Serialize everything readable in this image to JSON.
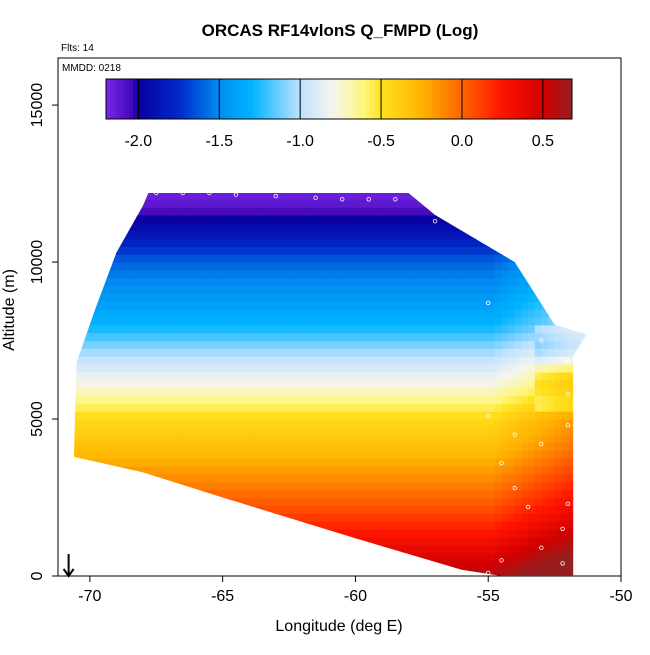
{
  "chart_data": {
    "type": "heatmap",
    "title": "ORCAS RF14vlonS Q_FMPD (Log)",
    "xlabel": "Longitude (deg E)",
    "ylabel": "Altitude (m)",
    "xlim": [
      -71.2,
      -50
    ],
    "ylim": [
      0,
      16500
    ],
    "xticks": [
      -70,
      -65,
      -60,
      -55,
      -50
    ],
    "yticks": [
      0,
      5000,
      10000,
      15000
    ],
    "colorbar": {
      "range": [
        -2.2,
        0.68
      ],
      "ticks": [
        -2.0,
        -1.5,
        -1.0,
        -0.5,
        0.0,
        0.5
      ],
      "tick_labels": [
        "-2.0",
        "-1.5",
        "-1.0",
        "-0.5",
        "0.0",
        "0.5"
      ]
    },
    "annotations": {
      "flights": "Flts: 14",
      "date": "MMDD: 0218"
    },
    "profile": [
      {
        "altitude": 0,
        "value": 0.6
      },
      {
        "altitude": 1000,
        "value": 0.35
      },
      {
        "altitude": 2000,
        "value": 0.1
      },
      {
        "altitude": 3000,
        "value": -0.1
      },
      {
        "altitude": 4000,
        "value": -0.3
      },
      {
        "altitude": 5000,
        "value": -0.45
      },
      {
        "altitude": 6000,
        "value": -0.75
      },
      {
        "altitude": 7000,
        "value": -1.0
      },
      {
        "altitude": 8000,
        "value": -1.3
      },
      {
        "altitude": 9000,
        "value": -1.45
      },
      {
        "altitude": 10000,
        "value": -1.6
      },
      {
        "altitude": 11000,
        "value": -1.9
      },
      {
        "altitude": 12000,
        "value": -2.15
      }
    ],
    "domain_outline": [
      {
        "lon": -70.6,
        "alt": 3800
      },
      {
        "lon": -70.5,
        "alt": 6800
      },
      {
        "lon": -69.8,
        "alt": 8500
      },
      {
        "lon": -69.0,
        "alt": 10300
      },
      {
        "lon": -68.0,
        "alt": 11800
      },
      {
        "lon": -67.8,
        "alt": 12200
      },
      {
        "lon": -58.0,
        "alt": 12200
      },
      {
        "lon": -57.0,
        "alt": 11500
      },
      {
        "lon": -54.0,
        "alt": 10000
      },
      {
        "lon": -52.5,
        "alt": 8000
      },
      {
        "lon": -51.3,
        "alt": 7700
      },
      {
        "lon": -51.8,
        "alt": 7000
      },
      {
        "lon": -51.8,
        "alt": 0
      },
      {
        "lon": -54.5,
        "alt": 0
      },
      {
        "lon": -56.0,
        "alt": 200
      },
      {
        "lon": -60.0,
        "alt": 1200
      },
      {
        "lon": -65.0,
        "alt": 2500
      },
      {
        "lon": -68.0,
        "alt": 3300
      },
      {
        "lon": -70.6,
        "alt": 3800
      }
    ],
    "sample_points": [
      {
        "lon": -67.5,
        "alt": 12200
      },
      {
        "lon": -66.5,
        "alt": 12200
      },
      {
        "lon": -65.5,
        "alt": 12200
      },
      {
        "lon": -64.5,
        "alt": 12150
      },
      {
        "lon": -63.0,
        "alt": 12100
      },
      {
        "lon": -61.5,
        "alt": 12050
      },
      {
        "lon": -60.5,
        "alt": 12000
      },
      {
        "lon": -59.5,
        "alt": 12000
      },
      {
        "lon": -58.5,
        "alt": 12000
      },
      {
        "lon": -57.0,
        "alt": 11300
      },
      {
        "lon": -55.0,
        "alt": 8700
      },
      {
        "lon": -53.0,
        "alt": 7500
      },
      {
        "lon": -52.0,
        "alt": 6800
      },
      {
        "lon": -52.0,
        "alt": 5800
      },
      {
        "lon": -52.0,
        "alt": 4800
      },
      {
        "lon": -53.0,
        "alt": 4200
      },
      {
        "lon": -54.5,
        "alt": 3600
      },
      {
        "lon": -54.0,
        "alt": 2800
      },
      {
        "lon": -53.5,
        "alt": 2200
      },
      {
        "lon": -52.0,
        "alt": 2300
      },
      {
        "lon": -52.2,
        "alt": 1500
      },
      {
        "lon": -53.0,
        "alt": 900
      },
      {
        "lon": -54.5,
        "alt": 500
      },
      {
        "lon": -55.0,
        "alt": 100
      },
      {
        "lon": -52.2,
        "alt": 400
      },
      {
        "lon": -54.0,
        "alt": 4500
      },
      {
        "lon": -55.0,
        "alt": 5100
      }
    ],
    "marker": {
      "lon": -70.8,
      "alt_from": 700,
      "alt_to": 0
    }
  }
}
